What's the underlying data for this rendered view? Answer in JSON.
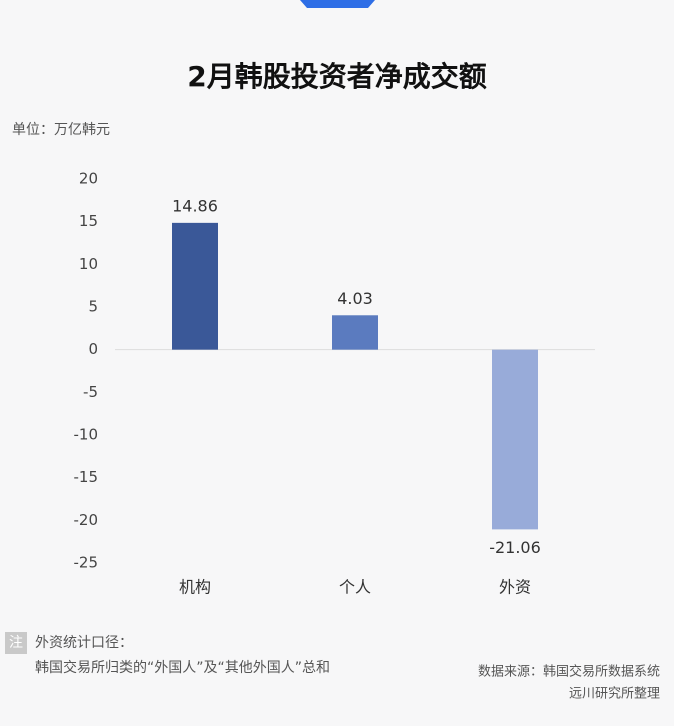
{
  "chart_data": {
    "type": "bar",
    "title": "2月韩股投资者净成交额",
    "unit": "单位：万亿韩元",
    "categories": [
      "机构",
      "个人",
      "外资"
    ],
    "values": [
      14.86,
      4.03,
      -21.06
    ],
    "colors": [
      "#3a5898",
      "#5b7bbf",
      "#98abd9"
    ],
    "ylim": [
      -25,
      20
    ],
    "yticks": [
      20,
      15,
      10,
      5,
      0,
      -5,
      -10,
      -15,
      -20,
      -25
    ]
  },
  "notes": {
    "badge": "注",
    "lines": [
      "外资统计口径：",
      "韩国交易所归类的“外国人”及“其他外国人”总和"
    ]
  },
  "source": [
    "数据来源：韩国交易所数据系统",
    "远川研究所整理"
  ]
}
